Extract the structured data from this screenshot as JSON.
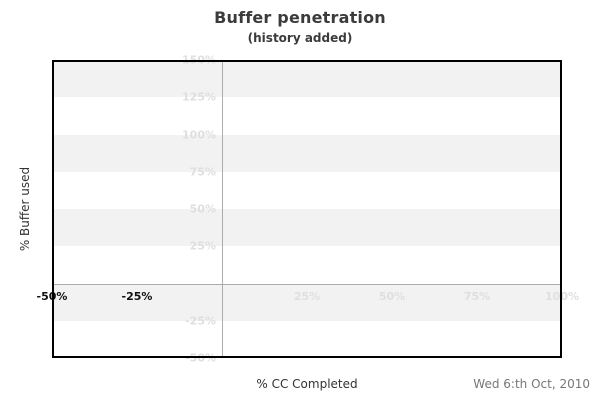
{
  "header": {
    "title": "Buffer penetration",
    "subtitle": "(history added)"
  },
  "chart_data": {
    "type": "line",
    "title": "Buffer penetration",
    "subtitle": "(history added)",
    "xlabel": "% CC Completed",
    "ylabel": "% Buffer used",
    "xlim": [
      -50,
      100
    ],
    "ylim": [
      -50,
      150
    ],
    "series": [],
    "x_ticks": [
      {
        "value": -50,
        "label": "-50%",
        "emphasis": true
      },
      {
        "value": -25,
        "label": "-25%",
        "emphasis": true
      },
      {
        "value": 25,
        "label": "25%",
        "emphasis": false
      },
      {
        "value": 50,
        "label": "50%",
        "emphasis": false
      },
      {
        "value": 75,
        "label": "75%",
        "emphasis": false
      },
      {
        "value": 100,
        "label": "100%",
        "emphasis": false
      }
    ],
    "y_ticks": [
      {
        "value": 150,
        "label": "150%"
      },
      {
        "value": 125,
        "label": "125%"
      },
      {
        "value": 100,
        "label": "100%"
      },
      {
        "value": 75,
        "label": "75%"
      },
      {
        "value": 50,
        "label": "50%"
      },
      {
        "value": 25,
        "label": "25%"
      },
      {
        "value": -25,
        "label": "-25%"
      },
      {
        "value": -50,
        "label": "-50%"
      }
    ],
    "gray_bands": [
      [
        150,
        125
      ],
      [
        100,
        75
      ],
      [
        50,
        25
      ],
      [
        0,
        -25
      ]
    ],
    "gridlines": {
      "x": [
        0
      ],
      "y": [
        0
      ]
    },
    "grid_on": true,
    "legend": null,
    "colors": {
      "band": "#f2f2f2",
      "gridline": "#ababab",
      "tick_faded": "#dfdfdf",
      "tick_dark": "#111111",
      "border": "#000000",
      "title_text": "#3b3b3b",
      "axis_title_text": "#333333",
      "date_text": "#777777"
    }
  },
  "footer": {
    "date": "Wed 6:th Oct, 2010"
  }
}
